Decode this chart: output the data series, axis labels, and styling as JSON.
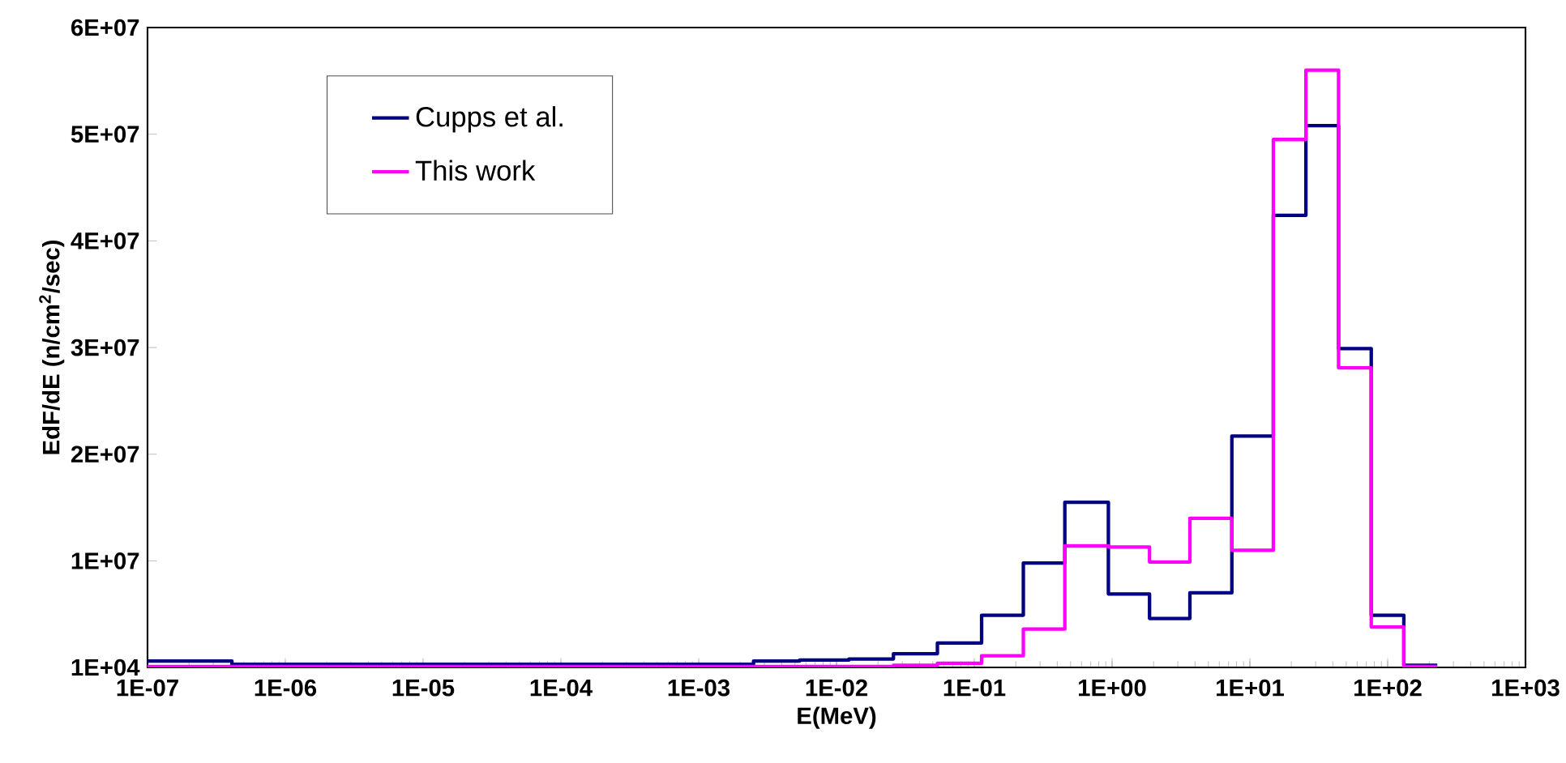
{
  "chart_data": {
    "type": "step",
    "xlabel": "E(MeV)",
    "ylabel": "EdF/dE (n/cm$^{2}$/sec)",
    "log": "x",
    "grid": false,
    "legend": "top left",
    "marker": "none",
    "line_style": "solid",
    "xlim": [
      1e-07,
      1000
    ],
    "ylim": [
      10000,
      60000000
    ],
    "xticks": [
      {
        "value": 1e-07,
        "label": "1E-07"
      },
      {
        "value": 1e-06,
        "label": "1E-06"
      },
      {
        "value": 1e-05,
        "label": "1E-05"
      },
      {
        "value": 0.0001,
        "label": "1E-04"
      },
      {
        "value": 0.001,
        "label": "1E-03"
      },
      {
        "value": 0.01,
        "label": "1E-02"
      },
      {
        "value": 0.1,
        "label": "1E-01"
      },
      {
        "value": 1,
        "label": "1E+00"
      },
      {
        "value": 10,
        "label": "1E+01"
      },
      {
        "value": 100,
        "label": "1E+02"
      },
      {
        "value": 1000,
        "label": "1E+03"
      }
    ],
    "yticks": [
      {
        "value": 10000,
        "label": "1E+04"
      },
      {
        "value": 10000000,
        "label": "1E+07"
      },
      {
        "value": 20000000,
        "label": "2E+07"
      },
      {
        "value": 30000000,
        "label": "3E+07"
      },
      {
        "value": 40000000,
        "label": "4E+07"
      },
      {
        "value": 50000000,
        "label": "5E+07"
      },
      {
        "value": 60000000,
        "label": "6E+07"
      }
    ],
    "series": [
      {
        "name": "Cupps et al.",
        "color": "#000080",
        "x": [
          1e-07,
          4.1e-07,
          0.0025,
          0.0054,
          0.0123,
          0.0259,
          0.054,
          0.113,
          0.227,
          0.454,
          0.94,
          1.87,
          3.67,
          7.4,
          14.8,
          25.5,
          44,
          76,
          131,
          229
        ],
        "values": [
          600000,
          300000,
          600000,
          700000,
          800000,
          1300000,
          2300000,
          4900000,
          9800000,
          15500000,
          6900000,
          4600000,
          7000000,
          21700000,
          42400000,
          50800000,
          29900000,
          4900000,
          200000,
          200000
        ]
      },
      {
        "name": "This work",
        "color": "#ff00ff",
        "x": [
          1e-07,
          0.0259,
          0.054,
          0.113,
          0.227,
          0.454,
          0.94,
          1.87,
          3.67,
          7.4,
          14.8,
          25.5,
          44,
          76,
          131,
          229
        ],
        "values": [
          100000,
          200000,
          400000,
          1100000,
          3600000,
          11400000,
          11300000,
          9900000,
          14000000,
          11000000,
          49500000,
          56000000,
          28100000,
          3800000,
          100000,
          100000
        ]
      }
    ]
  }
}
